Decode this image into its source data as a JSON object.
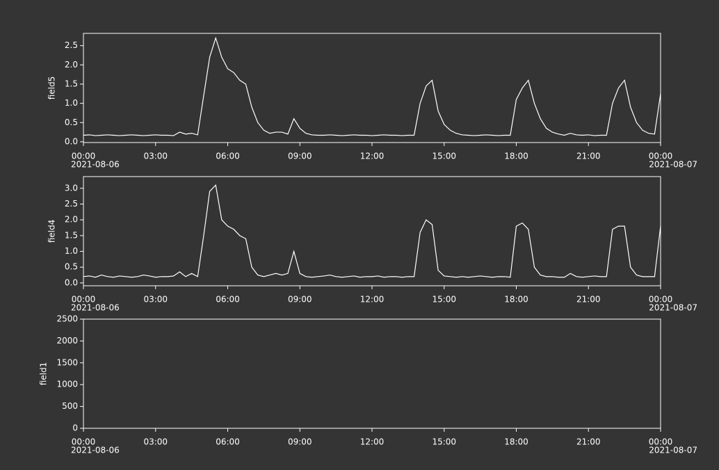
{
  "chart_data": [
    {
      "type": "line",
      "ylabel": "field5",
      "xlim": [
        0,
        24
      ],
      "ylim": [
        -0.02,
        2.82
      ],
      "xticks": [
        {
          "value": 0,
          "label": "00:00"
        },
        {
          "value": 3,
          "label": "03:00"
        },
        {
          "value": 6,
          "label": "06:00"
        },
        {
          "value": 9,
          "label": "09:00"
        },
        {
          "value": 12,
          "label": "12:00"
        },
        {
          "value": 15,
          "label": "15:00"
        },
        {
          "value": 18,
          "label": "18:00"
        },
        {
          "value": 21,
          "label": "21:00"
        },
        {
          "value": 24,
          "label": "00:00"
        }
      ],
      "start_date": "2021-08-06",
      "end_date": "2021-08-07",
      "yticks": [
        {
          "value": 0,
          "label": "0.0"
        },
        0.5,
        {
          "value": 1,
          "label": "1.0"
        },
        1.5,
        {
          "value": 2,
          "label": "2.0"
        },
        2.5
      ],
      "x": [
        0,
        0.25,
        0.5,
        0.75,
        1,
        1.25,
        1.5,
        1.75,
        2,
        2.25,
        2.5,
        2.75,
        3,
        3.25,
        3.5,
        3.75,
        4,
        4.25,
        4.5,
        4.75,
        5,
        5.25,
        5.5,
        5.75,
        6,
        6.25,
        6.5,
        6.75,
        7,
        7.25,
        7.5,
        7.75,
        8,
        8.25,
        8.5,
        8.75,
        9,
        9.25,
        9.5,
        9.75,
        10,
        10.25,
        10.5,
        10.75,
        11,
        11.25,
        11.5,
        11.75,
        12,
        12.25,
        12.5,
        12.75,
        13,
        13.25,
        13.5,
        13.75,
        14,
        14.25,
        14.5,
        14.75,
        15,
        15.25,
        15.5,
        15.75,
        16,
        16.25,
        16.5,
        16.75,
        17,
        17.25,
        17.5,
        17.75,
        18,
        18.25,
        18.5,
        18.75,
        19,
        19.25,
        19.5,
        19.75,
        20,
        20.25,
        20.5,
        20.75,
        21,
        21.25,
        21.5,
        21.75,
        22,
        22.25,
        22.5,
        22.75,
        23,
        23.25,
        23.5,
        23.75,
        24
      ],
      "series": [
        {
          "color": "#ffffff",
          "values": [
            0.17,
            0.18,
            0.16,
            0.17,
            0.18,
            0.17,
            0.16,
            0.17,
            0.18,
            0.17,
            0.16,
            0.17,
            0.18,
            0.17,
            0.17,
            0.16,
            0.25,
            0.2,
            0.22,
            0.18,
            1.2,
            2.2,
            2.7,
            2.2,
            1.9,
            1.8,
            1.6,
            1.5,
            0.9,
            0.5,
            0.3,
            0.22,
            0.25,
            0.25,
            0.2,
            0.6,
            0.35,
            0.22,
            0.18,
            0.17,
            0.17,
            0.18,
            0.17,
            0.16,
            0.17,
            0.18,
            0.17,
            0.17,
            0.16,
            0.17,
            0.18,
            0.17,
            0.17,
            0.16,
            0.17,
            0.17,
            1.0,
            1.45,
            1.6,
            0.8,
            0.45,
            0.3,
            0.22,
            0.18,
            0.17,
            0.16,
            0.17,
            0.18,
            0.17,
            0.16,
            0.17,
            0.17,
            1.1,
            1.4,
            1.6,
            1.0,
            0.6,
            0.35,
            0.25,
            0.2,
            0.17,
            0.22,
            0.18,
            0.17,
            0.18,
            0.16,
            0.17,
            0.17,
            1.0,
            1.4,
            1.6,
            0.9,
            0.5,
            0.3,
            0.22,
            0.2,
            1.25
          ]
        }
      ]
    },
    {
      "type": "line",
      "ylabel": "field4",
      "xlim": [
        0,
        24
      ],
      "ylim": [
        -0.09,
        3.37
      ],
      "xticks": [
        {
          "value": 0,
          "label": "00:00"
        },
        {
          "value": 3,
          "label": "03:00"
        },
        {
          "value": 6,
          "label": "06:00"
        },
        {
          "value": 9,
          "label": "09:00"
        },
        {
          "value": 12,
          "label": "12:00"
        },
        {
          "value": 15,
          "label": "15:00"
        },
        {
          "value": 18,
          "label": "18:00"
        },
        {
          "value": 21,
          "label": "21:00"
        },
        {
          "value": 24,
          "label": "00:00"
        }
      ],
      "start_date": "2021-08-06",
      "end_date": "2021-08-07",
      "yticks": [
        {
          "value": 0,
          "label": "0.0"
        },
        0.5,
        {
          "value": 1,
          "label": "1.0"
        },
        1.5,
        {
          "value": 2,
          "label": "2.0"
        },
        2.5,
        {
          "value": 3,
          "label": "3.0"
        }
      ],
      "x": [
        0,
        0.25,
        0.5,
        0.75,
        1,
        1.25,
        1.5,
        1.75,
        2,
        2.25,
        2.5,
        2.75,
        3,
        3.25,
        3.5,
        3.75,
        4,
        4.25,
        4.5,
        4.75,
        5,
        5.25,
        5.5,
        5.75,
        6,
        6.25,
        6.5,
        6.75,
        7,
        7.25,
        7.5,
        7.75,
        8,
        8.25,
        8.5,
        8.75,
        9,
        9.25,
        9.5,
        9.75,
        10,
        10.25,
        10.5,
        10.75,
        11,
        11.25,
        11.5,
        11.75,
        12,
        12.25,
        12.5,
        12.75,
        13,
        13.25,
        13.5,
        13.75,
        14,
        14.25,
        14.5,
        14.75,
        15,
        15.25,
        15.5,
        15.75,
        16,
        16.25,
        16.5,
        16.75,
        17,
        17.25,
        17.5,
        17.75,
        18,
        18.25,
        18.5,
        18.75,
        19,
        19.25,
        19.5,
        19.75,
        20,
        20.25,
        20.5,
        20.75,
        21,
        21.25,
        21.5,
        21.75,
        22,
        22.25,
        22.5,
        22.75,
        23,
        23.25,
        23.5,
        23.75,
        24
      ],
      "series": [
        {
          "color": "#ffffff",
          "values": [
            0.2,
            0.22,
            0.18,
            0.25,
            0.2,
            0.18,
            0.22,
            0.2,
            0.18,
            0.2,
            0.25,
            0.22,
            0.18,
            0.2,
            0.2,
            0.22,
            0.35,
            0.2,
            0.3,
            0.2,
            1.5,
            2.9,
            3.1,
            2.0,
            1.8,
            1.7,
            1.5,
            1.4,
            0.5,
            0.25,
            0.2,
            0.25,
            0.3,
            0.25,
            0.3,
            1.0,
            0.3,
            0.2,
            0.18,
            0.2,
            0.22,
            0.25,
            0.2,
            0.18,
            0.2,
            0.22,
            0.18,
            0.2,
            0.2,
            0.22,
            0.18,
            0.2,
            0.2,
            0.18,
            0.2,
            0.2,
            1.6,
            2.0,
            1.85,
            0.4,
            0.22,
            0.2,
            0.18,
            0.2,
            0.18,
            0.2,
            0.22,
            0.2,
            0.18,
            0.2,
            0.2,
            0.18,
            1.8,
            1.9,
            1.7,
            0.5,
            0.25,
            0.2,
            0.2,
            0.18,
            0.18,
            0.3,
            0.2,
            0.18,
            0.2,
            0.22,
            0.2,
            0.2,
            1.7,
            1.8,
            1.8,
            0.5,
            0.25,
            0.2,
            0.2,
            0.2,
            1.8
          ]
        }
      ]
    },
    {
      "type": "line",
      "ylabel": "field1",
      "xlim": [
        0,
        24
      ],
      "ylim": [
        0,
        2500
      ],
      "xticks": [
        {
          "value": 0,
          "label": "00:00"
        },
        {
          "value": 3,
          "label": "03:00"
        },
        {
          "value": 6,
          "label": "06:00"
        },
        {
          "value": 9,
          "label": "09:00"
        },
        {
          "value": 12,
          "label": "12:00"
        },
        {
          "value": 15,
          "label": "15:00"
        },
        {
          "value": 18,
          "label": "18:00"
        },
        {
          "value": 21,
          "label": "21:00"
        },
        {
          "value": 24,
          "label": "00:00"
        }
      ],
      "start_date": "2021-08-06",
      "end_date": "2021-08-07",
      "yticks": [
        0,
        500,
        1000,
        1500,
        2000,
        2500
      ],
      "x": [],
      "series": []
    }
  ]
}
